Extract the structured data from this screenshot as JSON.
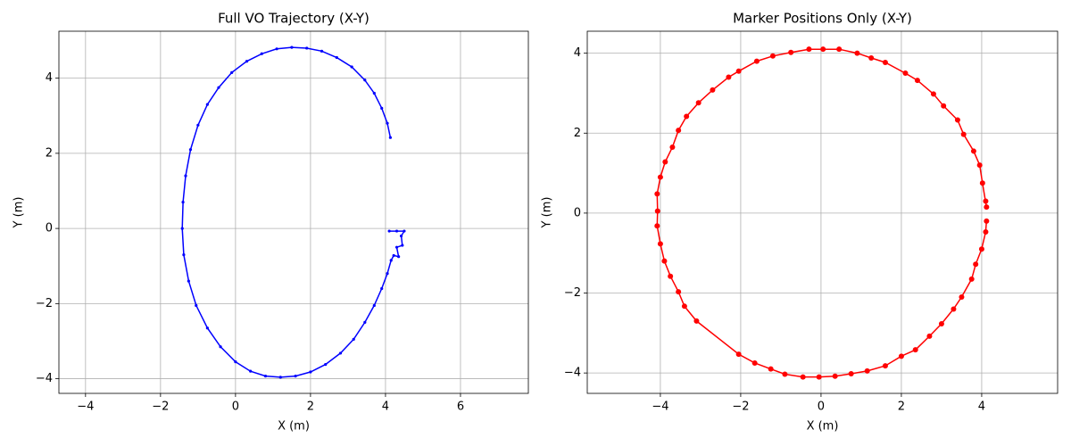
{
  "chart_data": [
    {
      "type": "line",
      "title": "Full VO Trajectory (X-Y)",
      "x_label": "X (m)",
      "y_label": "Y (m)",
      "color": "#0000ff",
      "grid": true,
      "x": [
        4.13,
        4.05,
        3.9,
        3.7,
        3.45,
        3.1,
        2.7,
        2.3,
        1.9,
        1.5,
        1.1,
        0.7,
        0.3,
        -0.1,
        -0.45,
        -0.75,
        -1.0,
        -1.2,
        -1.33,
        -1.4,
        -1.42,
        -1.38,
        -1.25,
        -1.05,
        -0.75,
        -0.4,
        0.0,
        0.4,
        0.8,
        1.2,
        1.6,
        2.0,
        2.4,
        2.8,
        3.15,
        3.45,
        3.7,
        3.9,
        4.05,
        4.15,
        4.22,
        4.35,
        4.3,
        4.45,
        4.42,
        4.5,
        4.3,
        4.1
      ],
      "values": [
        2.42,
        2.8,
        3.2,
        3.6,
        3.95,
        4.3,
        4.55,
        4.72,
        4.8,
        4.82,
        4.78,
        4.65,
        4.45,
        4.15,
        3.75,
        3.3,
        2.75,
        2.1,
        1.4,
        0.7,
        0,
        -0.7,
        -1.4,
        -2.05,
        -2.65,
        -3.15,
        -3.55,
        -3.8,
        -3.93,
        -3.96,
        -3.93,
        -3.82,
        -3.62,
        -3.32,
        -2.95,
        -2.5,
        -2.05,
        -1.6,
        -1.2,
        -0.85,
        -0.72,
        -0.75,
        -0.5,
        -0.45,
        -0.2,
        -0.07,
        -0.07,
        -0.07
      ],
      "xlim": [
        -4.71,
        7.81
      ],
      "ylim": [
        -4.39,
        5.25
      ],
      "xticks": [
        {
          "value": -4,
          "label": "−4"
        },
        {
          "value": -2,
          "label": "−2"
        },
        0,
        2,
        4,
        6
      ],
      "yticks": [
        {
          "value": -4,
          "label": "−4"
        },
        {
          "value": -2,
          "label": "−2"
        },
        0,
        2,
        4
      ]
    },
    {
      "type": "line",
      "title": "Marker Positions Only (X-Y)",
      "x_label": "X (m)",
      "y_label": "Y (m)",
      "color": "#ff0000",
      "grid": true,
      "x": [
        4.1,
        4.12,
        4.02,
        3.95,
        3.8,
        3.55,
        3.4,
        3.05,
        2.8,
        2.4,
        2.1,
        1.6,
        1.25,
        0.9,
        0.45,
        0.05,
        -0.3,
        -0.75,
        -1.2,
        -1.6,
        -2.05,
        -2.3,
        -2.7,
        -3.05,
        -3.35,
        -3.55,
        -3.7,
        -3.88,
        -4.0,
        -4.08,
        -4.07,
        -4.08,
        -4.0,
        -3.9,
        -3.75,
        -3.55,
        -3.4,
        -3.1,
        -2.05,
        -1.65,
        -1.25,
        -0.9,
        -0.45,
        -0.05,
        0.35,
        0.75,
        1.15,
        1.6,
        2.0,
        2.35,
        2.7,
        3.0,
        3.3,
        3.5,
        3.75,
        3.85,
        4.0,
        4.1,
        4.12
      ],
      "values": [
        0.3,
        0.15,
        0.75,
        1.2,
        1.55,
        1.97,
        2.33,
        2.68,
        2.98,
        3.32,
        3.5,
        3.77,
        3.88,
        4.0,
        4.1,
        4.1,
        4.1,
        4.02,
        3.93,
        3.8,
        3.55,
        3.4,
        3.08,
        2.76,
        2.42,
        2.07,
        1.65,
        1.28,
        0.9,
        0.48,
        0.05,
        -0.32,
        -0.77,
        -1.2,
        -1.58,
        -1.97,
        -2.33,
        -2.7,
        -3.53,
        -3.75,
        -3.9,
        -4.03,
        -4.1,
        -4.1,
        -4.08,
        -4.02,
        -3.95,
        -3.82,
        -3.58,
        -3.42,
        -3.08,
        -2.77,
        -2.4,
        -2.1,
        -1.65,
        -1.28,
        -0.9,
        -0.47,
        -0.2
      ],
      "xlim": [
        -5.82,
        5.89
      ],
      "ylim": [
        -4.51,
        4.55
      ],
      "xticks": [
        {
          "value": -4,
          "label": "−4"
        },
        {
          "value": -2,
          "label": "−2"
        },
        0,
        2,
        4
      ],
      "yticks": [
        {
          "value": -4,
          "label": "−4"
        },
        {
          "value": -2,
          "label": "−2"
        },
        0,
        2,
        4
      ]
    }
  ]
}
